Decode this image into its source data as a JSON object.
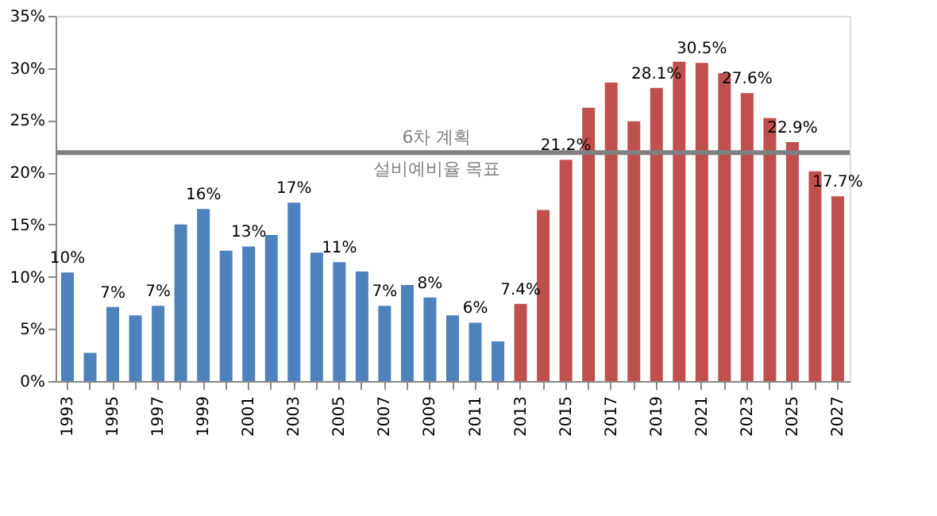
{
  "chart_data": {
    "type": "bar",
    "categories": [
      "1993",
      null,
      "1995",
      null,
      "1997",
      null,
      "1999",
      null,
      "2001",
      null,
      "2003",
      null,
      "2005",
      null,
      "2007",
      null,
      "2009",
      null,
      "2011",
      null,
      "2013",
      null,
      "2015",
      null,
      "2017",
      null,
      "2019",
      null,
      "2021",
      null,
      "2023",
      null,
      "2025",
      null,
      "2027"
    ],
    "values": [
      10.4,
      2.7,
      7.1,
      6.3,
      7.2,
      15.0,
      16.5,
      12.5,
      12.9,
      14.0,
      17.1,
      12.3,
      11.4,
      10.5,
      7.2,
      9.2,
      8.0,
      6.3,
      5.6,
      3.8,
      7.4,
      16.4,
      21.2,
      26.2,
      28.6,
      24.9,
      28.1,
      30.6,
      30.5,
      29.5,
      27.6,
      25.2,
      22.9,
      20.1,
      17.7
    ],
    "colors": [
      "#4f81bd",
      "#4f81bd",
      "#4f81bd",
      "#4f81bd",
      "#4f81bd",
      "#4f81bd",
      "#4f81bd",
      "#4f81bd",
      "#4f81bd",
      "#4f81bd",
      "#4f81bd",
      "#4f81bd",
      "#4f81bd",
      "#4f81bd",
      "#4f81bd",
      "#4f81bd",
      "#4f81bd",
      "#4f81bd",
      "#4f81bd",
      "#4f81bd",
      "#c0504d",
      "#c0504d",
      "#c0504d",
      "#c0504d",
      "#c0504d",
      "#c0504d",
      "#c0504d",
      "#c0504d",
      "#c0504d",
      "#c0504d",
      "#c0504d",
      "#c0504d",
      "#c0504d",
      "#c0504d",
      "#c0504d"
    ],
    "value_labels": [
      "10%",
      null,
      "7%",
      null,
      "7%",
      null,
      "16%",
      null,
      "13%",
      null,
      "17%",
      null,
      "11%",
      null,
      "7%",
      null,
      "8%",
      null,
      "6%",
      null,
      "7.4%",
      null,
      "21.2%",
      null,
      null,
      null,
      "28.1%",
      null,
      "30.5%",
      null,
      "27.6%",
      null,
      "22.9%",
      null,
      "17.7%"
    ],
    "ylim": [
      0,
      35
    ],
    "yticks": [
      {
        "value": 0,
        "label": "0%"
      },
      {
        "value": 5,
        "label": "5%"
      },
      {
        "value": 10,
        "label": "10%"
      },
      {
        "value": 15,
        "label": "15%"
      },
      {
        "value": 20,
        "label": "20%"
      },
      {
        "value": 25,
        "label": "25%"
      },
      {
        "value": 30,
        "label": "30%"
      },
      {
        "value": 35,
        "label": "35%"
      }
    ],
    "ref_lines": [
      {
        "axis": "y",
        "value": 21.9,
        "label": "6차 계획\n설비예비율 목표",
        "color": "#808080"
      }
    ],
    "grid": false
  }
}
